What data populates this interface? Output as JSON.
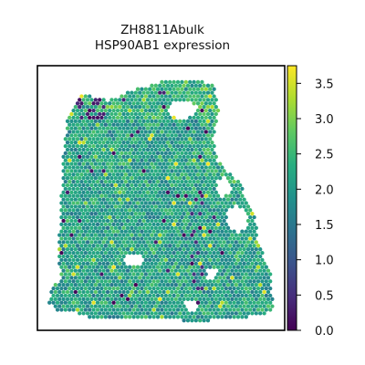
{
  "chart_data": {
    "type": "scatter",
    "title": "ZH8811Abulk",
    "subtitle": "HSP90AB1 expression",
    "colorbar": {
      "colormap": "viridis",
      "range": [
        0.0,
        3.75
      ],
      "ticks": [
        0.0,
        0.5,
        1.0,
        1.5,
        2.0,
        2.5,
        3.0,
        3.5
      ],
      "tick_labels": [
        "0.0",
        "0.5",
        "1.0",
        "1.5",
        "2.0",
        "2.5",
        "3.0",
        "3.5"
      ]
    },
    "axes": {
      "x_ticks": false,
      "y_ticks": false,
      "frame": true
    },
    "point_style": "hexagonal spatial spots",
    "value_summary": {
      "typical": 2.0,
      "range_observed": [
        0.0,
        3.7
      ],
      "notes": "Most spots 1.6–2.6; low (0–0.5) spots concentrated near top-left cluster and along central vertical seam; high (3.0–3.7) spots scattered near top and right-center."
    },
    "colors": {
      "low": "#440154",
      "mid": "#21918c",
      "high": "#fde725"
    }
  }
}
